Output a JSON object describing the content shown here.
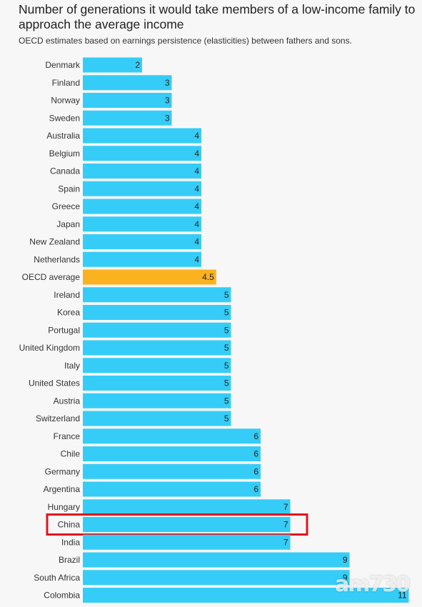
{
  "header": {
    "title": "Number of generations it would take members of a low-income family to approach the average income",
    "subtitle": "OECD estimates based on earnings persistence (elasticities) between fathers and sons."
  },
  "watermark": "am730",
  "colors": {
    "bar": "#35cdf7",
    "highlight_bar": "#fbb220",
    "highlight_box": "#e0141e"
  },
  "chart_data": {
    "type": "bar",
    "orientation": "horizontal",
    "title": "Number of generations it would take members of a low-income family to approach the average income",
    "subtitle": "OECD estimates based on earnings persistence (elasticities) between fathers and sons.",
    "categories": [
      "Denmark",
      "Finland",
      "Norway",
      "Sweden",
      "Australia",
      "Belgium",
      "Canada",
      "Spain",
      "Greece",
      "Japan",
      "New Zealand",
      "Netherlands",
      "OECD average",
      "Ireland",
      "Korea",
      "Portugal",
      "United Kingdom",
      "Italy",
      "United States",
      "Austria",
      "Switzerland",
      "France",
      "Chile",
      "Germany",
      "Argentina",
      "Hungary",
      "China",
      "India",
      "Brazil",
      "South Africa",
      "Colombia"
    ],
    "values": [
      2,
      3,
      3,
      3,
      4,
      4,
      4,
      4,
      4,
      4,
      4,
      4,
      4.5,
      5,
      5,
      5,
      5,
      5,
      5,
      5,
      5,
      6,
      6,
      6,
      6,
      7,
      7,
      7,
      9,
      9,
      11
    ],
    "value_labels": [
      "2",
      "3",
      "3",
      "3",
      "4",
      "4",
      "4",
      "4",
      "4",
      "4",
      "4",
      "4",
      "4.5",
      "5",
      "5",
      "5",
      "5",
      "5",
      "5",
      "5",
      "5",
      "6",
      "6",
      "6",
      "6",
      "7",
      "7",
      "7",
      "9",
      "9",
      "11"
    ],
    "highlighted_category": "OECD average",
    "boxed_category": "China",
    "xlim": [
      0,
      11
    ],
    "grid": false
  }
}
